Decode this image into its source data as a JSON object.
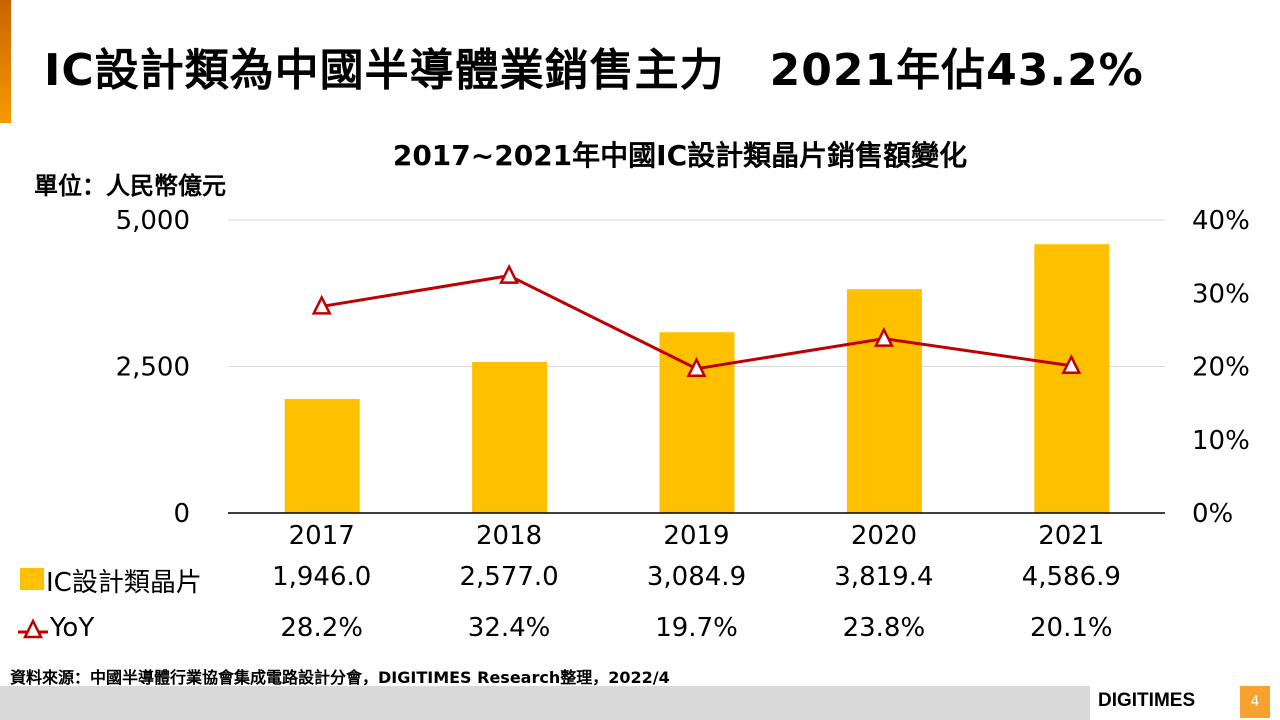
{
  "title": "IC設計類為中國半導體業銷售主力　2021年佔43.2%",
  "unit_label": "單位：人民幣億元",
  "chart_data": {
    "type": "bar",
    "title": "2017~2021年中國IC設計類晶片銷售額變化",
    "categories": [
      "2017",
      "2018",
      "2019",
      "2020",
      "2021"
    ],
    "series": [
      {
        "name": "IC設計類晶片",
        "type": "bar",
        "axis": "left",
        "color": "#ffc000",
        "values": [
          1946.0,
          2577.0,
          3084.9,
          3819.4,
          4586.9
        ],
        "labels": [
          "1,946.0",
          "2,577.0",
          "3,084.9",
          "3,819.4",
          "4,586.9"
        ]
      },
      {
        "name": "YoY",
        "type": "line",
        "axis": "right",
        "color": "#c00000",
        "values": [
          28.2,
          32.4,
          19.7,
          23.8,
          20.1
        ],
        "labels": [
          "28.2%",
          "32.4%",
          "19.7%",
          "23.8%",
          "20.1%"
        ]
      }
    ],
    "ylim": [
      0,
      5000
    ],
    "y_ticks": [
      "0",
      "2,500",
      "5,000"
    ],
    "y_tick_values": [
      0,
      2500,
      5000
    ],
    "y2lim": [
      0,
      40
    ],
    "y2_ticks": [
      "0%",
      "10%",
      "20%",
      "30%",
      "40%"
    ],
    "y2_tick_values": [
      0,
      10,
      20,
      30,
      40
    ],
    "grid": true
  },
  "source": "資料來源：中國半導體行業協會集成電路設計分會，DIGITIMES Research整理，2022/4",
  "logo": "DIGITIMES",
  "page_number": "4"
}
